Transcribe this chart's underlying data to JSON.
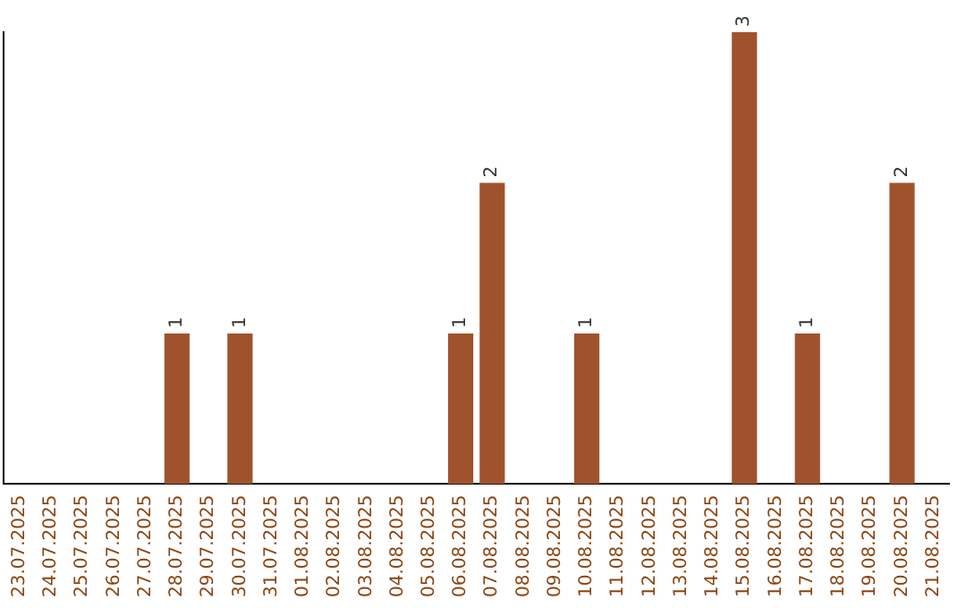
{
  "chart_data": {
    "type": "bar",
    "categories": [
      "23.07.2025",
      "24.07.2025",
      "25.07.2025",
      "26.07.2025",
      "27.07.2025",
      "28.07.2025",
      "29.07.2025",
      "30.07.2025",
      "31.07.2025",
      "01.08.2025",
      "02.08.2025",
      "03.08.2025",
      "04.08.2025",
      "05.08.2025",
      "06.08.2025",
      "07.08.2025",
      "08.08.2025",
      "09.08.2025",
      "10.08.2025",
      "11.08.2025",
      "12.08.2025",
      "13.08.2025",
      "14.08.2025",
      "15.08.2025",
      "16.08.2025",
      "17.08.2025",
      "18.08.2025",
      "19.08.2025",
      "20.08.2025",
      "21.08.2025"
    ],
    "values": [
      0,
      0,
      0,
      0,
      0,
      1,
      0,
      1,
      0,
      0,
      0,
      0,
      0,
      0,
      1,
      2,
      0,
      0,
      1,
      0,
      0,
      0,
      0,
      3,
      0,
      1,
      0,
      0,
      2,
      0
    ],
    "value_labels": [
      null,
      null,
      null,
      null,
      null,
      "1",
      null,
      "1",
      null,
      null,
      null,
      null,
      null,
      null,
      "1",
      "2",
      null,
      null,
      "1",
      null,
      null,
      null,
      null,
      "3",
      null,
      "1",
      null,
      null,
      "2",
      null
    ],
    "color": "#a0522d",
    "grid": false,
    "legend": false
  }
}
